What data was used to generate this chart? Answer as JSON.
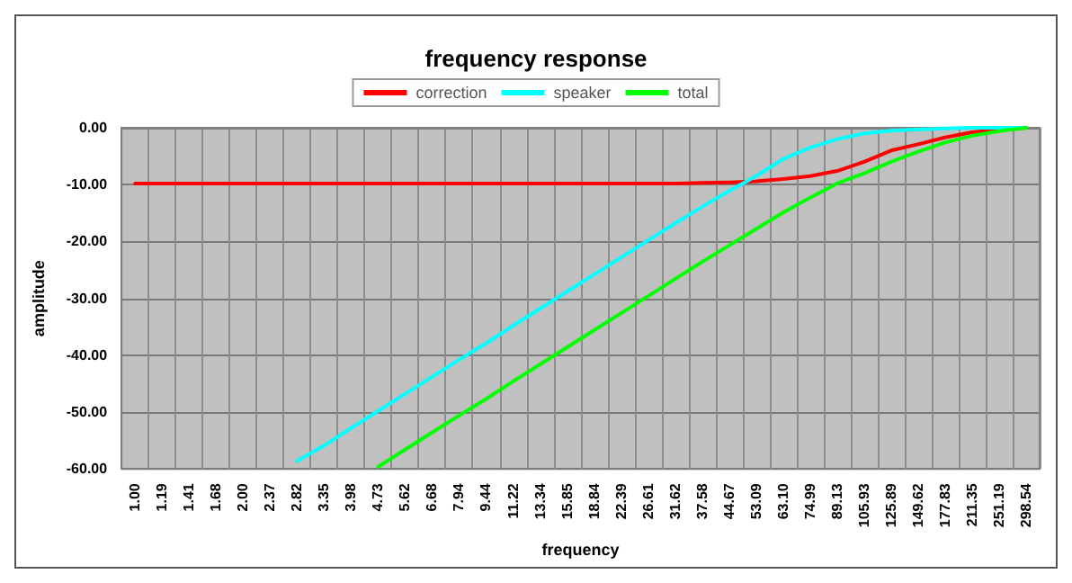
{
  "chart_data": {
    "type": "line",
    "title": "frequency response",
    "xlabel": "frequency",
    "ylabel": "amplitude",
    "categories": [
      "1.00",
      "1.19",
      "1.41",
      "1.68",
      "2.00",
      "2.37",
      "2.82",
      "3.35",
      "3.98",
      "4.73",
      "5.62",
      "6.68",
      "7.94",
      "9.44",
      "11.22",
      "13.34",
      "15.85",
      "18.84",
      "22.39",
      "26.61",
      "31.62",
      "37.58",
      "44.67",
      "53.09",
      "63.10",
      "74.99",
      "89.13",
      "105.93",
      "125.89",
      "149.62",
      "177.83",
      "211.35",
      "251.19",
      "298.54"
    ],
    "series": [
      {
        "name": "correction",
        "color": "#ff0000",
        "values": [
          -9.8,
          -9.8,
          -9.8,
          -9.8,
          -9.8,
          -9.8,
          -9.8,
          -9.8,
          -9.8,
          -9.8,
          -9.8,
          -9.8,
          -9.8,
          -9.8,
          -9.8,
          -9.8,
          -9.8,
          -9.8,
          -9.8,
          -9.8,
          -9.8,
          -9.7,
          -9.6,
          -9.4,
          -9.0,
          -8.5,
          -7.6,
          -6.0,
          -4.0,
          -2.9,
          -1.7,
          -0.8,
          -0.3,
          0
        ]
      },
      {
        "name": "speaker",
        "color": "#00ffff",
        "values": [
          null,
          null,
          null,
          null,
          null,
          null,
          -58.6,
          -55.9,
          -52.8,
          -49.8,
          -46.8,
          -43.8,
          -40.8,
          -37.9,
          -34.8,
          -31.8,
          -28.8,
          -25.8,
          -22.8,
          -19.8,
          -16.8,
          -13.9,
          -11.1,
          -8.5,
          -5.5,
          -3.5,
          -2.0,
          -1.0,
          -0.5,
          -0.3,
          -0.1,
          0,
          0,
          0
        ]
      },
      {
        "name": "total",
        "color": "#00ff00",
        "values": [
          null,
          null,
          null,
          null,
          null,
          null,
          null,
          null,
          null,
          -59.6,
          -56.6,
          -53.6,
          -50.6,
          -47.7,
          -44.6,
          -41.6,
          -38.6,
          -35.6,
          -32.6,
          -29.6,
          -26.6,
          -23.6,
          -20.7,
          -17.8,
          -14.9,
          -12.3,
          -9.8,
          -8.0,
          -6.0,
          -4.2,
          -2.6,
          -1.4,
          -0.6,
          0
        ]
      }
    ],
    "ylim": [
      -60,
      0
    ],
    "yticks": [
      {
        "value": 0,
        "label": "0.00"
      },
      {
        "value": -10,
        "label": "-10.00"
      },
      {
        "value": -20,
        "label": "-20.00"
      },
      {
        "value": -30,
        "label": "-30.00"
      },
      {
        "value": -40,
        "label": "-40.00"
      },
      {
        "value": -50,
        "label": "-50.00"
      },
      {
        "value": -60,
        "label": "-60.00"
      }
    ],
    "grid": true,
    "legend": "top",
    "marker": "none",
    "line_style": "solid"
  }
}
